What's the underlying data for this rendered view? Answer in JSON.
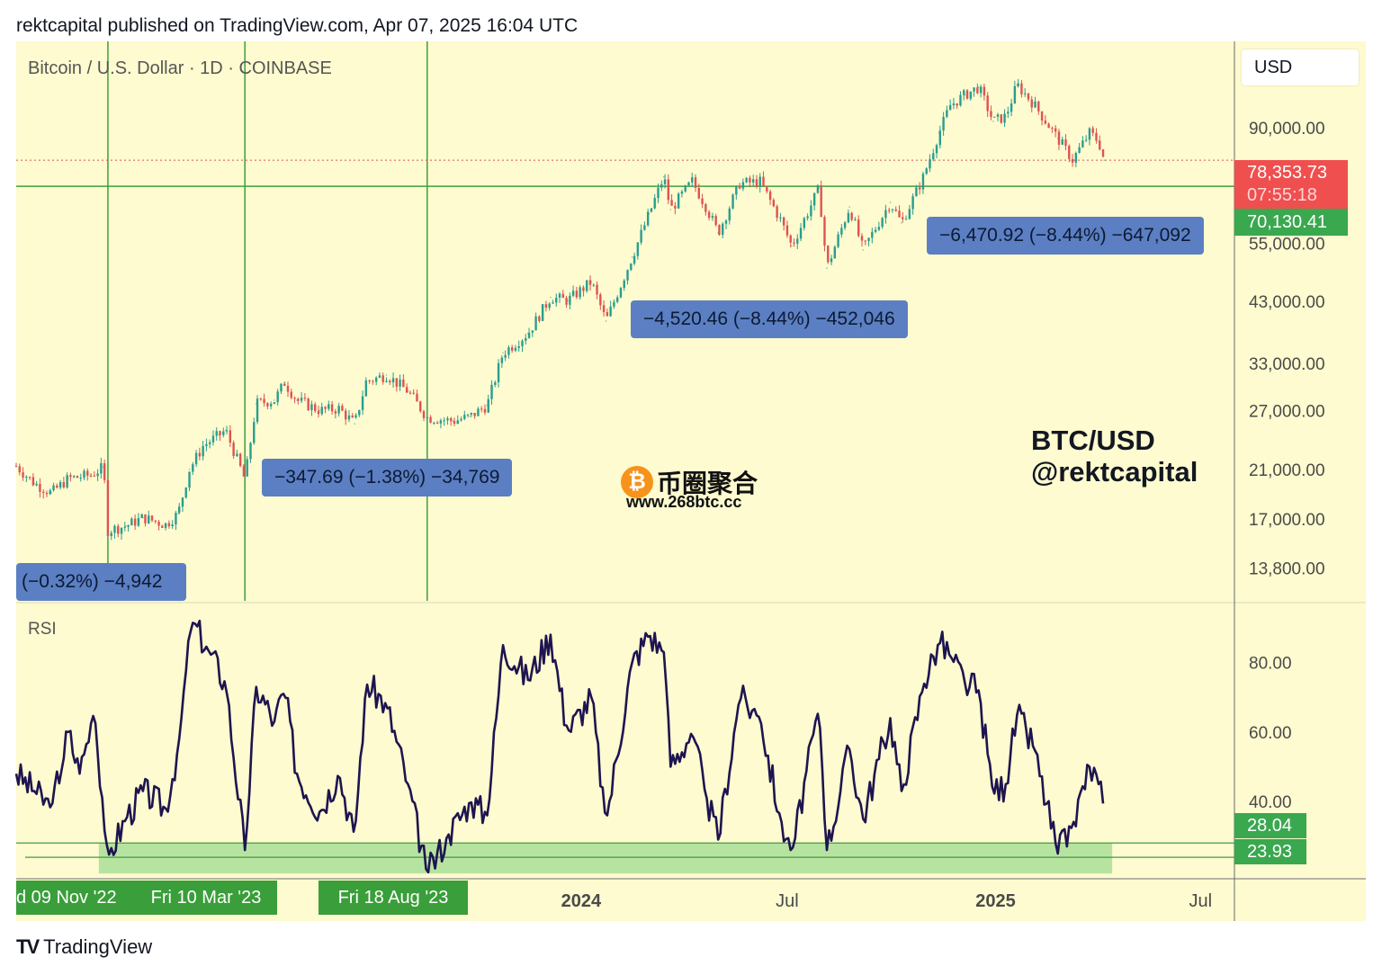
{
  "header": {
    "published": "rektcapital published on TradingView.com, Apr 07, 2025 16:04 UTC"
  },
  "symbol": {
    "title": "Bitcoin / U.S. Dollar · 1D · COINBASE",
    "currency": "USD"
  },
  "brand": {
    "line1": "BTC/USD",
    "line2": "@rektcapital"
  },
  "watermark": {
    "coin": "₿",
    "text": "币圈聚合",
    "url": "www.268btc.cc"
  },
  "footer": {
    "logo": "TV",
    "name": "TradingView"
  },
  "price_tags": {
    "current_price": "78,353.73",
    "countdown": "07:55:18",
    "support": "70,130.41",
    "rsi_upper": "28.04",
    "rsi_lower": "23.93"
  },
  "callouts": [
    {
      "text": "(−0.32%) −4,942"
    },
    {
      "text": "−347.69 (−1.38%) −34,769"
    },
    {
      "text": "−4,520.46 (−8.44%) −452,046"
    },
    {
      "text": "−6,470.92 (−8.44%) −647,092"
    }
  ],
  "date_tags": [
    "d 09 Nov '22",
    "Fri 10 Mar '23",
    "Fri 18 Aug '23"
  ],
  "colors": {
    "panel_bg": "#fdfbcf",
    "grid_line": "#3f9e3f",
    "candle_up": "#2a9d8f",
    "candle_down": "#e05252",
    "rsi_line": "#1e1450",
    "rsi_band": "#b7e3a1",
    "price_tag_red": "#ef4f4f",
    "price_tag_green": "#3aa84f",
    "callout_blue": "#5b7fc2"
  },
  "chart_data": [
    {
      "type": "line",
      "name": "price",
      "title": "Bitcoin / U.S. Dollar · 1D · COINBASE",
      "xlabel": "",
      "ylabel": "USD",
      "scale": "log",
      "ylim": [
        12000,
        130000
      ],
      "y_ticks": [
        {
          "value": 90000,
          "label": "90,000.00"
        },
        {
          "value": 55000,
          "label": "55,000.00"
        },
        {
          "value": 43000,
          "label": "43,000.00"
        },
        {
          "value": 33000,
          "label": "33,000.00"
        },
        {
          "value": 27000,
          "label": "27,000.00"
        },
        {
          "value": 21000,
          "label": "21,000.00"
        },
        {
          "value": 17000,
          "label": "17,000.00"
        },
        {
          "value": 13800,
          "label": "13,800.00"
        }
      ],
      "x_ticks": [
        {
          "date": "2024-01-01",
          "label": "2024",
          "bold": true
        },
        {
          "date": "2024-07-01",
          "label": "Jul",
          "bold": false
        },
        {
          "date": "2025-01-01",
          "label": "2025",
          "bold": true
        },
        {
          "date": "2025-07-01",
          "label": "Jul",
          "bold": false
        }
      ],
      "x_start": "2022-08-20",
      "x_end": "2025-07-31",
      "vertical_markers": [
        "2022-11-09",
        "2023-03-10",
        "2023-08-18"
      ],
      "horizontal_level": 70130.41,
      "last_price": 78353.73,
      "points": [
        [
          "2022-08-20",
          21300
        ],
        [
          "2022-09-05",
          19800
        ],
        [
          "2022-09-20",
          19000
        ],
        [
          "2022-10-05",
          20200
        ],
        [
          "2022-10-25",
          20500
        ],
        [
          "2022-11-05",
          21200
        ],
        [
          "2022-11-09",
          16200
        ],
        [
          "2022-11-25",
          16500
        ],
        [
          "2022-12-10",
          17100
        ],
        [
          "2022-12-30",
          16600
        ],
        [
          "2023-01-10",
          17400
        ],
        [
          "2023-01-20",
          21000
        ],
        [
          "2023-02-01",
          23200
        ],
        [
          "2023-02-15",
          24300
        ],
        [
          "2023-02-21",
          24800
        ],
        [
          "2023-03-10",
          20100
        ],
        [
          "2023-03-20",
          27800
        ],
        [
          "2023-04-05",
          28200
        ],
        [
          "2023-04-14",
          30400
        ],
        [
          "2023-04-25",
          28200
        ],
        [
          "2023-05-15",
          27000
        ],
        [
          "2023-06-01",
          27200
        ],
        [
          "2023-06-15",
          25500
        ],
        [
          "2023-06-25",
          30500
        ],
        [
          "2023-07-13",
          31400
        ],
        [
          "2023-08-01",
          29300
        ],
        [
          "2023-08-18",
          26200
        ],
        [
          "2023-09-10",
          25800
        ],
        [
          "2023-09-25",
          26300
        ],
        [
          "2023-10-10",
          27600
        ],
        [
          "2023-10-24",
          34500
        ],
        [
          "2023-11-15",
          37500
        ],
        [
          "2023-12-05",
          43700
        ],
        [
          "2023-12-20",
          43100
        ],
        [
          "2024-01-10",
          46700
        ],
        [
          "2024-01-23",
          39500
        ],
        [
          "2024-02-15",
          51900
        ],
        [
          "2024-03-01",
          62400
        ],
        [
          "2024-03-14",
          73000
        ],
        [
          "2024-03-20",
          63500
        ],
        [
          "2024-04-08",
          71600
        ],
        [
          "2024-04-20",
          64500
        ],
        [
          "2024-05-01",
          57500
        ],
        [
          "2024-05-20",
          71000
        ],
        [
          "2024-06-07",
          71500
        ],
        [
          "2024-06-25",
          60800
        ],
        [
          "2024-07-05",
          54400
        ],
        [
          "2024-07-29",
          69500
        ],
        [
          "2024-08-05",
          49500
        ],
        [
          "2024-08-25",
          64200
        ],
        [
          "2024-09-06",
          53500
        ],
        [
          "2024-09-30",
          65500
        ],
        [
          "2024-10-10",
          60000
        ],
        [
          "2024-10-29",
          72800
        ],
        [
          "2024-11-12",
          88000
        ],
        [
          "2024-11-22",
          99000
        ],
        [
          "2024-12-05",
          103500
        ],
        [
          "2024-12-17",
          107000
        ],
        [
          "2024-12-30",
          92500
        ],
        [
          "2025-01-10",
          94500
        ],
        [
          "2025-01-20",
          108000
        ],
        [
          "2025-02-03",
          100000
        ],
        [
          "2025-02-25",
          86000
        ],
        [
          "2025-03-10",
          78500
        ],
        [
          "2025-03-25",
          88000
        ],
        [
          "2025-04-02",
          85000
        ],
        [
          "2025-04-07",
          78353.73
        ]
      ],
      "annotations": [
        {
          "text": "(−0.32%) −4,942"
        },
        {
          "text": "−347.69 (−1.38%) −34,769"
        },
        {
          "text": "−4,520.46 (−8.44%) −452,046"
        },
        {
          "text": "−6,470.92 (−8.44%) −647,092"
        }
      ]
    },
    {
      "type": "line",
      "name": "RSI",
      "title": "RSI",
      "ylim": [
        18,
        97
      ],
      "y_ticks": [
        {
          "value": 80,
          "label": "80.00"
        },
        {
          "value": 60,
          "label": "60.00"
        },
        {
          "value": 40,
          "label": "40.00"
        }
      ],
      "band": [
        23.93,
        28.04
      ],
      "points": [
        [
          "2022-08-20",
          48
        ],
        [
          "2022-09-05",
          43
        ],
        [
          "2022-09-20",
          38
        ],
        [
          "2022-10-05",
          60
        ],
        [
          "2022-10-15",
          48
        ],
        [
          "2022-10-28",
          66
        ],
        [
          "2022-11-09",
          24
        ],
        [
          "2022-11-25",
          35
        ],
        [
          "2022-12-10",
          43
        ],
        [
          "2022-12-30",
          38
        ],
        [
          "2023-01-10",
          55
        ],
        [
          "2023-01-22",
          92
        ],
        [
          "2023-02-05",
          84
        ],
        [
          "2023-02-21",
          74
        ],
        [
          "2023-03-10",
          26
        ],
        [
          "2023-03-20",
          73
        ],
        [
          "2023-04-05",
          63
        ],
        [
          "2023-04-14",
          72
        ],
        [
          "2023-04-25",
          48
        ],
        [
          "2023-05-15",
          37
        ],
        [
          "2023-06-01",
          48
        ],
        [
          "2023-06-15",
          30
        ],
        [
          "2023-06-25",
          74
        ],
        [
          "2023-07-13",
          68
        ],
        [
          "2023-08-01",
          45
        ],
        [
          "2023-08-18",
          19
        ],
        [
          "2023-09-05",
          30
        ],
        [
          "2023-09-25",
          40
        ],
        [
          "2023-10-10",
          36
        ],
        [
          "2023-10-24",
          85
        ],
        [
          "2023-11-15",
          75
        ],
        [
          "2023-12-05",
          88
        ],
        [
          "2023-12-20",
          60
        ],
        [
          "2024-01-10",
          70
        ],
        [
          "2024-01-23",
          34
        ],
        [
          "2024-02-15",
          80
        ],
        [
          "2024-03-01",
          88
        ],
        [
          "2024-03-14",
          83
        ],
        [
          "2024-03-20",
          50
        ],
        [
          "2024-04-08",
          60
        ],
        [
          "2024-04-20",
          42
        ],
        [
          "2024-05-01",
          29
        ],
        [
          "2024-05-20",
          70
        ],
        [
          "2024-06-07",
          64
        ],
        [
          "2024-06-25",
          35
        ],
        [
          "2024-07-05",
          25
        ],
        [
          "2024-07-29",
          67
        ],
        [
          "2024-08-05",
          26
        ],
        [
          "2024-08-25",
          55
        ],
        [
          "2024-09-06",
          35
        ],
        [
          "2024-09-30",
          64
        ],
        [
          "2024-10-10",
          43
        ],
        [
          "2024-10-29",
          73
        ],
        [
          "2024-11-12",
          86
        ],
        [
          "2024-11-22",
          82
        ],
        [
          "2024-12-05",
          74
        ],
        [
          "2024-12-17",
          72
        ],
        [
          "2024-12-30",
          42
        ],
        [
          "2025-01-10",
          45
        ],
        [
          "2025-01-20",
          65
        ],
        [
          "2025-02-03",
          56
        ],
        [
          "2025-02-25",
          25
        ],
        [
          "2025-03-10",
          33
        ],
        [
          "2025-03-25",
          50
        ],
        [
          "2025-04-02",
          45
        ],
        [
          "2025-04-07",
          38
        ]
      ]
    }
  ]
}
